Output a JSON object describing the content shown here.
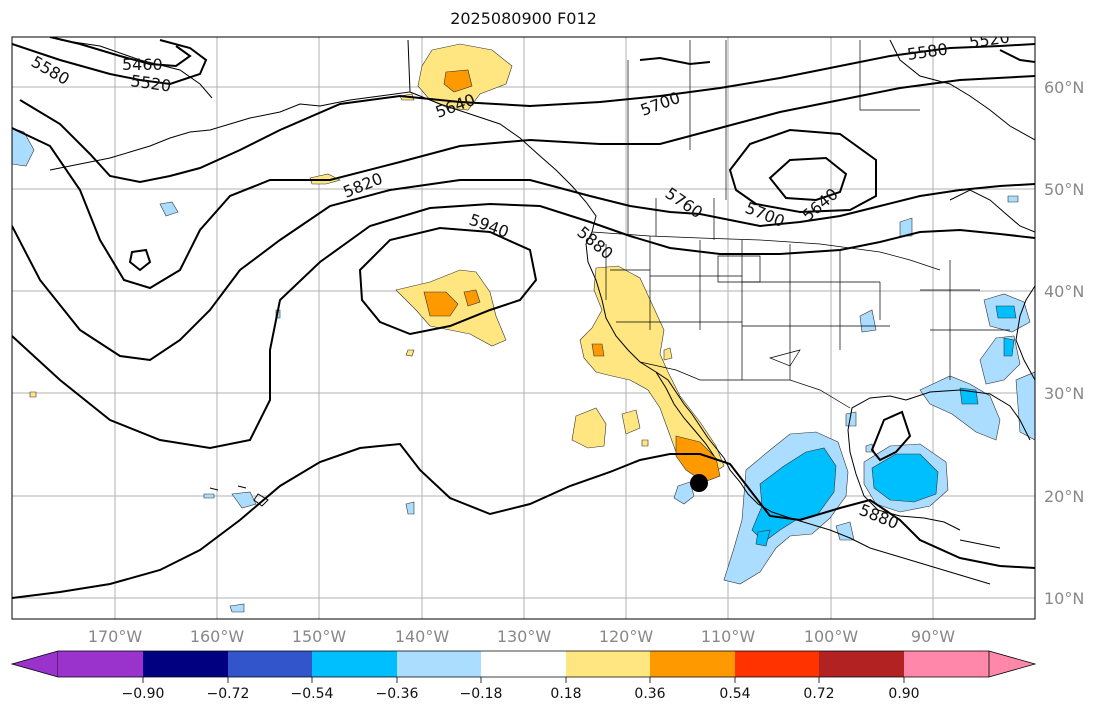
{
  "map": {
    "title": "2025080900 F012",
    "lon_ticks": [
      "170°W",
      "160°W",
      "150°W",
      "140°W",
      "130°W",
      "120°W",
      "110°W",
      "100°W",
      "90°W"
    ],
    "lat_ticks": [
      "60°N",
      "50°N",
      "40°N",
      "30°N",
      "20°N",
      "10°N"
    ],
    "contour_labels": [
      "5580",
      "5460",
      "5520",
      "5640",
      "5700",
      "5580",
      "5520",
      "5820",
      "5940",
      "5760",
      "5880",
      "5700",
      "5640",
      "5880"
    ],
    "marker": "storm-center-dot"
  },
  "colorbar": {
    "ticks": [
      "−0.90",
      "−0.72",
      "−0.54",
      "−0.36",
      "−0.18",
      "0.18",
      "0.36",
      "0.54",
      "0.72",
      "0.90"
    ],
    "colors": [
      "#9933cc",
      "#000080",
      "#3355cc",
      "#00bfff",
      "#aaddff",
      "#ffffff",
      "#ffe680",
      "#ff9900",
      "#ff3300",
      "#b22222",
      "#ff88aa"
    ]
  }
}
